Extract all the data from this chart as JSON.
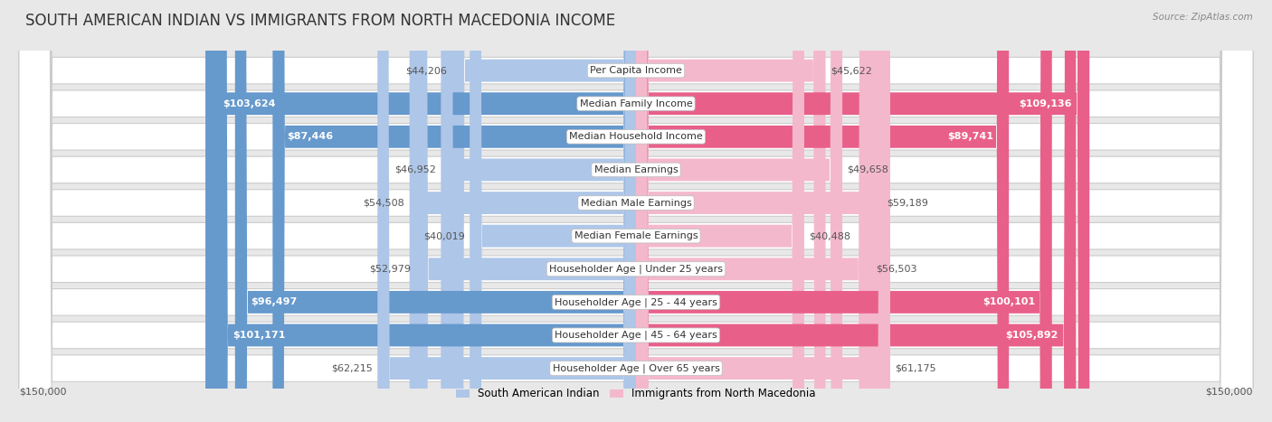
{
  "title": "SOUTH AMERICAN INDIAN VS IMMIGRANTS FROM NORTH MACEDONIA INCOME",
  "source": "Source: ZipAtlas.com",
  "categories": [
    "Per Capita Income",
    "Median Family Income",
    "Median Household Income",
    "Median Earnings",
    "Median Male Earnings",
    "Median Female Earnings",
    "Householder Age | Under 25 years",
    "Householder Age | 25 - 44 years",
    "Householder Age | 45 - 64 years",
    "Householder Age | Over 65 years"
  ],
  "left_values": [
    44206,
    103624,
    87446,
    46952,
    54508,
    40019,
    52979,
    96497,
    101171,
    62215
  ],
  "right_values": [
    45622,
    109136,
    89741,
    49658,
    59189,
    40488,
    56503,
    100101,
    105892,
    61175
  ],
  "left_labels": [
    "$44,206",
    "$103,624",
    "$87,446",
    "$46,952",
    "$54,508",
    "$40,019",
    "$52,979",
    "$96,497",
    "$101,171",
    "$62,215"
  ],
  "right_labels": [
    "$45,622",
    "$109,136",
    "$89,741",
    "$49,658",
    "$59,189",
    "$40,488",
    "$56,503",
    "$100,101",
    "$105,892",
    "$61,175"
  ],
  "left_color_light": "#aec6e8",
  "left_color_dark": "#6699cc",
  "right_color_light": "#f4b8cc",
  "right_color_dark": "#e8608a",
  "max_value": 150000,
  "left_legend": "South American Indian",
  "right_legend": "Immigrants from North Macedonia",
  "background_color": "#e8e8e8",
  "row_bg_color": "#ffffff",
  "row_border_color": "#cccccc",
  "title_fontsize": 12,
  "label_fontsize": 8,
  "category_fontsize": 8,
  "axis_label_left": "$150,000",
  "axis_label_right": "$150,000",
  "large_threshold": 65000,
  "inside_label_color": "#ffffff",
  "outside_label_color": "#555555"
}
